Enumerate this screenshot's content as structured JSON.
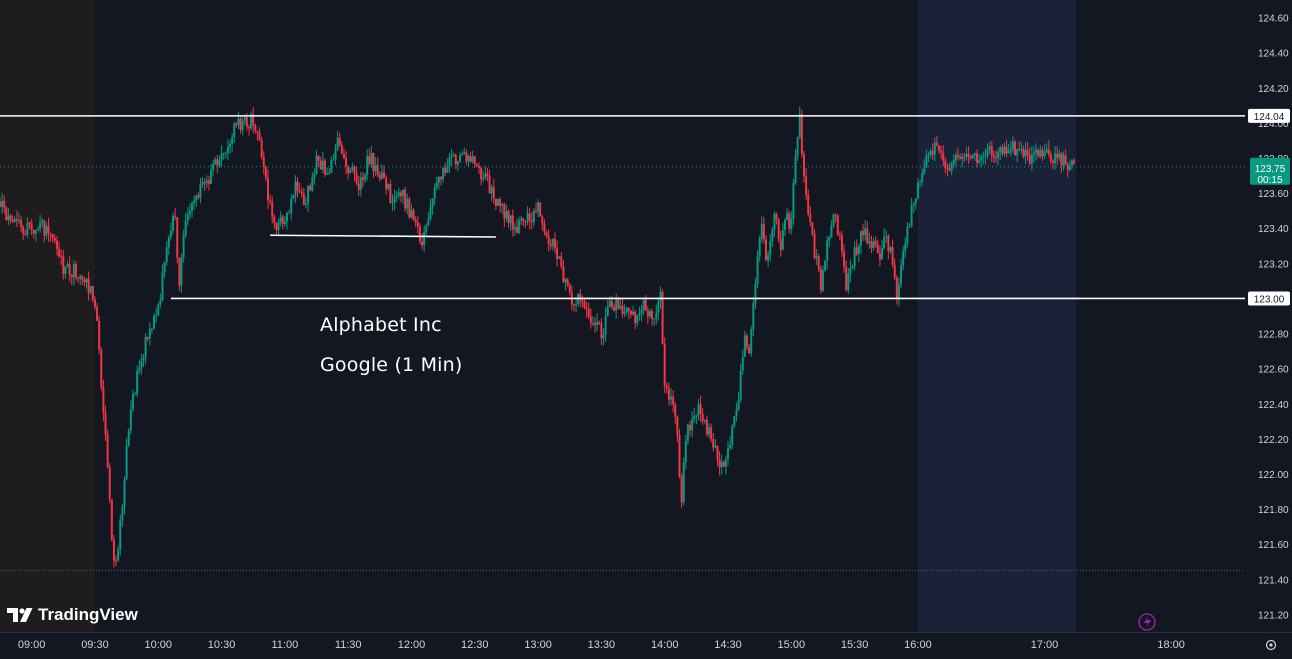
{
  "chart_data": {
    "type": "candlestick",
    "instrument": "Alphabet Inc",
    "subtitle": "Google (1 Min)",
    "x_ticks": [
      "09:00",
      "09:30",
      "10:00",
      "10:30",
      "11:00",
      "11:30",
      "12:00",
      "12:30",
      "13:00",
      "13:30",
      "14:00",
      "14:30",
      "15:00",
      "15:30",
      "16:00",
      "17:00",
      "18:00"
    ],
    "y_ticks": [
      "124.60",
      "124.40",
      "124.20",
      "124.00",
      "123.80",
      "123.60",
      "123.40",
      "123.20",
      "123.00",
      "122.80",
      "122.60",
      "122.40",
      "122.20",
      "122.00",
      "121.80",
      "121.60",
      "121.40",
      "121.20"
    ],
    "ylim": [
      121.1,
      124.7
    ],
    "time_range": [
      "08:45",
      "18:35"
    ],
    "session_shading": {
      "premarket": [
        "08:45",
        "09:30"
      ],
      "regular": [
        "09:30",
        "16:00"
      ],
      "postmarket": [
        "16:00",
        "17:15"
      ]
    },
    "price_path": [
      [
        "08:45",
        123.55
      ],
      [
        "08:50",
        123.42
      ],
      [
        "09:00",
        123.38
      ],
      [
        "09:05",
        123.4
      ],
      [
        "09:10",
        123.32
      ],
      [
        "09:15",
        123.18
      ],
      [
        "09:20",
        123.16
      ],
      [
        "09:25",
        123.1
      ],
      [
        "09:29",
        123.02
      ],
      [
        "09:31",
        122.85
      ],
      [
        "09:35",
        122.2
      ],
      [
        "09:38",
        121.62
      ],
      [
        "09:40",
        121.48
      ],
      [
        "09:42",
        121.7
      ],
      [
        "09:46",
        122.28
      ],
      [
        "09:50",
        122.55
      ],
      [
        "09:55",
        122.8
      ],
      [
        "10:00",
        122.95
      ],
      [
        "10:05",
        123.35
      ],
      [
        "10:08",
        123.48
      ],
      [
        "10:10",
        123.05
      ],
      [
        "10:12",
        123.4
      ],
      [
        "10:15",
        123.5
      ],
      [
        "10:20",
        123.62
      ],
      [
        "10:25",
        123.7
      ],
      [
        "10:30",
        123.82
      ],
      [
        "10:35",
        123.95
      ],
      [
        "10:40",
        124.0
      ],
      [
        "10:45",
        124.02
      ],
      [
        "10:48",
        123.92
      ],
      [
        "10:52",
        123.55
      ],
      [
        "10:56",
        123.4
      ],
      [
        "11:00",
        123.45
      ],
      [
        "11:05",
        123.65
      ],
      [
        "11:10",
        123.55
      ],
      [
        "11:15",
        123.8
      ],
      [
        "11:20",
        123.72
      ],
      [
        "11:25",
        123.88
      ],
      [
        "11:30",
        123.75
      ],
      [
        "11:35",
        123.65
      ],
      [
        "11:40",
        123.8
      ],
      [
        "11:45",
        123.72
      ],
      [
        "11:50",
        123.58
      ],
      [
        "11:55",
        123.6
      ],
      [
        "12:00",
        123.48
      ],
      [
        "12:05",
        123.3
      ],
      [
        "12:10",
        123.55
      ],
      [
        "12:15",
        123.75
      ],
      [
        "12:20",
        123.8
      ],
      [
        "12:25",
        123.82
      ],
      [
        "12:30",
        123.78
      ],
      [
        "12:35",
        123.68
      ],
      [
        "12:40",
        123.55
      ],
      [
        "12:45",
        123.48
      ],
      [
        "12:50",
        123.4
      ],
      [
        "12:55",
        123.45
      ],
      [
        "13:00",
        123.52
      ],
      [
        "13:05",
        123.35
      ],
      [
        "13:08",
        123.32
      ],
      [
        "13:12",
        123.12
      ],
      [
        "13:15",
        123.0
      ],
      [
        "13:20",
        122.98
      ],
      [
        "13:25",
        122.9
      ],
      [
        "13:30",
        122.8
      ],
      [
        "13:35",
        122.98
      ],
      [
        "13:40",
        122.95
      ],
      [
        "13:45",
        122.88
      ],
      [
        "13:50",
        122.95
      ],
      [
        "13:55",
        122.92
      ],
      [
        "13:58",
        123.0
      ],
      [
        "14:00",
        122.5
      ],
      [
        "14:05",
        122.35
      ],
      [
        "14:08",
        121.85
      ],
      [
        "14:10",
        122.2
      ],
      [
        "14:15",
        122.38
      ],
      [
        "14:20",
        122.25
      ],
      [
        "14:25",
        122.12
      ],
      [
        "14:28",
        122.0
      ],
      [
        "14:32",
        122.25
      ],
      [
        "14:35",
        122.45
      ],
      [
        "14:38",
        122.8
      ],
      [
        "14:40",
        122.68
      ],
      [
        "14:43",
        123.1
      ],
      [
        "14:46",
        123.4
      ],
      [
        "14:48",
        123.22
      ],
      [
        "14:52",
        123.45
      ],
      [
        "14:55",
        123.32
      ],
      [
        "14:58",
        123.45
      ],
      [
        "15:00",
        123.42
      ],
      [
        "15:02",
        123.85
      ],
      [
        "15:04",
        124.02
      ],
      [
        "15:06",
        123.7
      ],
      [
        "15:08",
        123.5
      ],
      [
        "15:10",
        123.35
      ],
      [
        "15:12",
        123.2
      ],
      [
        "15:14",
        123.05
      ],
      [
        "15:17",
        123.3
      ],
      [
        "15:20",
        123.48
      ],
      [
        "15:23",
        123.35
      ],
      [
        "15:26",
        123.05
      ],
      [
        "15:30",
        123.25
      ],
      [
        "15:34",
        123.38
      ],
      [
        "15:38",
        123.32
      ],
      [
        "15:42",
        123.25
      ],
      [
        "15:45",
        123.35
      ],
      [
        "15:48",
        123.22
      ],
      [
        "15:50",
        123.0
      ],
      [
        "15:53",
        123.3
      ],
      [
        "15:56",
        123.45
      ],
      [
        "16:00",
        123.62
      ],
      [
        "16:04",
        123.8
      ],
      [
        "16:08",
        123.85
      ],
      [
        "16:12",
        123.8
      ],
      [
        "16:15",
        123.75
      ],
      [
        "16:20",
        123.8
      ],
      [
        "16:25",
        123.82
      ],
      [
        "16:30",
        123.78
      ],
      [
        "16:35",
        123.84
      ],
      [
        "16:40",
        123.82
      ],
      [
        "16:45",
        123.86
      ],
      [
        "16:50",
        123.83
      ],
      [
        "16:55",
        123.8
      ],
      [
        "17:00",
        123.82
      ],
      [
        "17:05",
        123.8
      ],
      [
        "17:10",
        123.78
      ],
      [
        "17:15",
        123.75
      ]
    ],
    "horizontal_lines": [
      {
        "price": 124.04,
        "from": "08:45",
        "to": "18:35",
        "label": "124.04",
        "style": "solid"
      },
      {
        "price": 123.0,
        "from": "10:06",
        "to": "18:35",
        "label": "123.00",
        "style": "solid"
      },
      {
        "price": 121.45,
        "from": "08:45",
        "to": "18:35",
        "style": "dotted"
      }
    ],
    "trendline": {
      "start": [
        "10:53",
        123.36
      ],
      "end": [
        "12:40",
        123.35
      ]
    },
    "last_price": {
      "value": "123.75",
      "countdown": "00:15",
      "color": "#089981"
    },
    "colors": {
      "up": "#089981",
      "down": "#f23645",
      "background": "#131722",
      "premarket": "#1e1c1f",
      "postmarket": "#1a2237",
      "text": "#d1d4dc"
    }
  },
  "annotations": {
    "title": "Alphabet Inc",
    "subtitle": "Google (1 Min)"
  },
  "branding": {
    "logo_text": "TradingView"
  }
}
